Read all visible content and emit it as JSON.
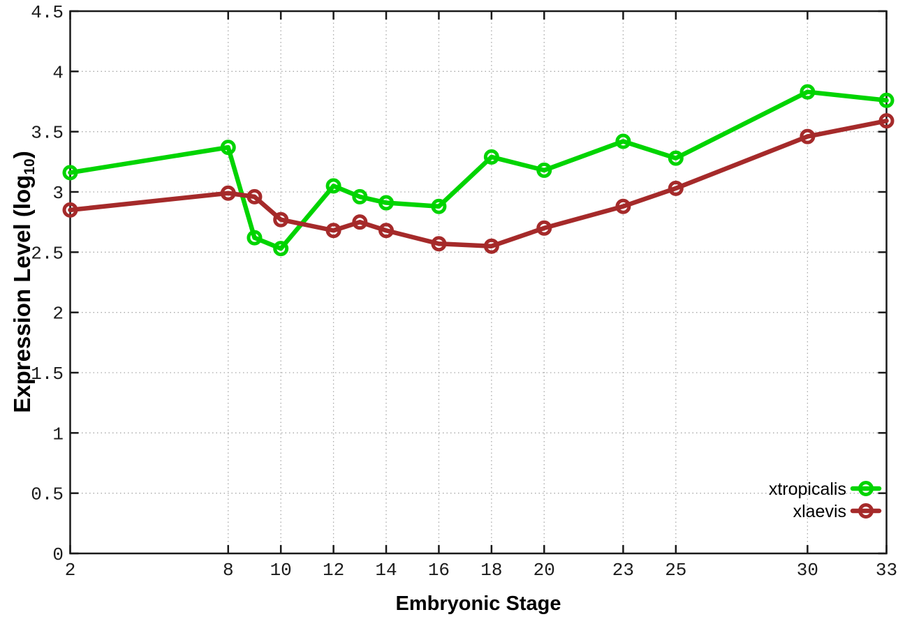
{
  "chart_data": {
    "type": "line",
    "title": "",
    "xlabel": "Embryonic Stage",
    "ylabel": "Expression Level (log10)",
    "ylabel_parts": {
      "prefix": "Expression Level (log",
      "subscript": "10",
      "suffix": ")"
    },
    "xlim": [
      2,
      33
    ],
    "ylim": [
      0,
      4.5
    ],
    "x_ticks": [
      2,
      8,
      10,
      12,
      14,
      16,
      18,
      20,
      23,
      25,
      30,
      33
    ],
    "y_ticks": [
      0,
      0.5,
      1,
      1.5,
      2,
      2.5,
      3,
      3.5,
      4,
      4.5
    ],
    "grid": true,
    "legend_position": "inside-bottom-right",
    "x": [
      2,
      8,
      9,
      10,
      12,
      13,
      14,
      16,
      18,
      20,
      23,
      25,
      30,
      33
    ],
    "series": [
      {
        "name": "xtropicalis",
        "color": "#00d400",
        "values": [
          3.16,
          3.37,
          2.62,
          2.53,
          3.05,
          2.96,
          2.91,
          2.88,
          3.29,
          3.18,
          3.42,
          3.28,
          3.83,
          3.76
        ]
      },
      {
        "name": "xlaevis",
        "color": "#a52a2a",
        "values": [
          2.85,
          2.99,
          2.96,
          2.77,
          2.68,
          2.75,
          2.68,
          2.57,
          2.55,
          2.7,
          2.88,
          3.03,
          3.46,
          3.59
        ]
      }
    ]
  },
  "style": {
    "border_color": "#1a1a1a",
    "grid_color": "#a8a8a8",
    "tick_label_color": "#1c1c1c",
    "background": "#ffffff"
  }
}
